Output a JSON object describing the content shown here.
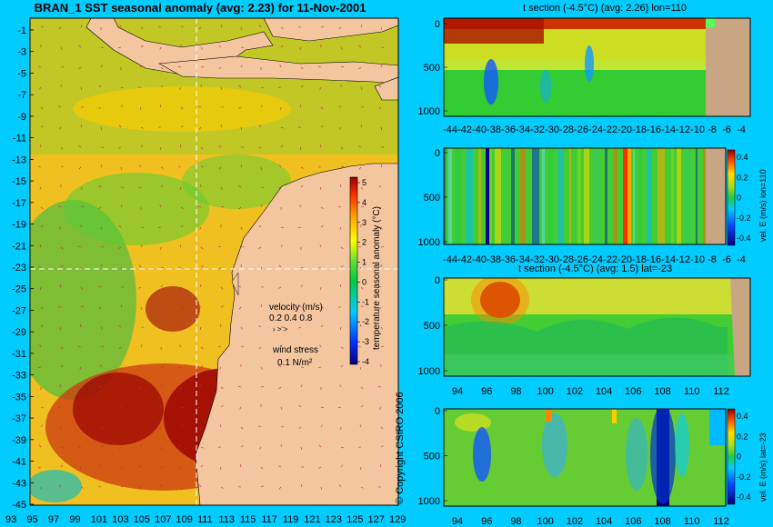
{
  "header": {
    "title": "BRAN_1  SST seasonal anomaly (avg: 2.23) for 11-Nov-2001"
  },
  "colors": {
    "background": "#00ccff",
    "land": "#f4c6a0",
    "land_section": "#c8a684"
  },
  "map": {
    "y_ticks": [
      "-1",
      "-3",
      "-5",
      "-7",
      "-9",
      "-11",
      "-13",
      "-15",
      "-17",
      "-19",
      "-21",
      "-23",
      "-25",
      "-27",
      "-29",
      "-31",
      "-33",
      "-35",
      "-37",
      "-39",
      "-41",
      "-43",
      "-45"
    ],
    "x_ticks": [
      "93",
      "95",
      "97",
      "99",
      "101",
      "103",
      "105",
      "107",
      "109",
      "111",
      "113",
      "115",
      "117",
      "119",
      "121",
      "123",
      "125",
      "127",
      "129"
    ],
    "colorbar": {
      "ticks": [
        "5",
        "4",
        "3",
        "2",
        "1",
        "0",
        "-1",
        "-2",
        "-3",
        "-4"
      ],
      "label": "temperature seasonal anomaly (°C)"
    },
    "velocity_legend": {
      "label": "velocity (m/s)",
      "values": "0.2 0.4 0.8"
    },
    "wind_legend": {
      "label": "wind stress",
      "value": "0.1 N/m²"
    },
    "copyright": "© Copyright CSIRO 2006"
  },
  "chart_data": [
    {
      "type": "heatmap",
      "title": "BRAN_1  SST seasonal anomaly (avg: 2.23) for 11-Nov-2001",
      "x_range": [
        93,
        130
      ],
      "y_range": [
        -45,
        0
      ],
      "colorbar_label": "temperature seasonal anomaly (°C)",
      "colorbar_range": [
        -4,
        5
      ],
      "crosshair": {
        "lon": 110,
        "lat": -23
      }
    },
    {
      "type": "heatmap",
      "title": "t section (-4.5°C) (avg: 2.26) lon=110",
      "x_ticks": [
        "-44",
        "-42",
        "-40",
        "-38",
        "-36",
        "-34",
        "-32",
        "-30",
        "-28",
        "-26",
        "-24",
        "-22",
        "-20",
        "-18",
        "-16",
        "-14",
        "-12",
        "-10",
        "-8",
        "-6",
        "-4"
      ],
      "y_ticks": [
        "0",
        "500",
        "1000"
      ],
      "x_range": [
        -45,
        -3
      ],
      "y_range": [
        0,
        1000
      ]
    },
    {
      "type": "heatmap",
      "title": "",
      "x_ticks": [
        "-44",
        "-42",
        "-40",
        "-38",
        "-36",
        "-34",
        "-32",
        "-30",
        "-28",
        "-26",
        "-24",
        "-22",
        "-20",
        "-18",
        "-16",
        "-14",
        "-12",
        "-10",
        "-8",
        "-6",
        "-4"
      ],
      "y_ticks": [
        "0",
        "500",
        "1000"
      ],
      "colorbar_ticks": [
        "0.4",
        "0.2",
        "0",
        "-0.2",
        "-0.4"
      ],
      "colorbar_label": "vel. E (m/s) lon=110"
    },
    {
      "type": "heatmap",
      "title": "t section (-4.5°C) (avg: 1.5) lat=-23",
      "x_ticks": [
        "94",
        "96",
        "98",
        "100",
        "102",
        "104",
        "106",
        "108",
        "110",
        "112"
      ],
      "y_ticks": [
        "0",
        "500",
        "1000"
      ],
      "x_range": [
        93,
        114
      ],
      "y_range": [
        0,
        1000
      ]
    },
    {
      "type": "heatmap",
      "title": "",
      "x_ticks": [
        "94",
        "96",
        "98",
        "100",
        "102",
        "104",
        "106",
        "108",
        "110",
        "112"
      ],
      "y_ticks": [
        "0",
        "500",
        "1000"
      ],
      "colorbar_ticks": [
        "0.4",
        "0.2",
        "0",
        "-0.2",
        "-0.4"
      ],
      "colorbar_label": "vel. E (m/s) lat=-23"
    }
  ]
}
